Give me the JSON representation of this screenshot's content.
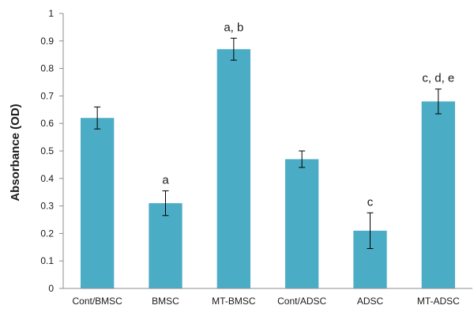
{
  "chart_data": {
    "type": "bar",
    "ylabel": "Absorbance (OD)",
    "xlabel": "",
    "ylim": [
      0,
      1
    ],
    "yticks": [
      0,
      0.1,
      0.2,
      0.3,
      0.4,
      0.5,
      0.6,
      0.7,
      0.8,
      0.9,
      1
    ],
    "ytick_labels": [
      "0",
      "0.1",
      "0.2",
      "0.3",
      "0.4",
      "0.5",
      "0.6",
      "0.7",
      "0.8",
      "0.9",
      "1"
    ],
    "grid": false,
    "bar_color": "#4bacc6",
    "categories": [
      "Cont/BMSC",
      "BMSC",
      "MT-BMSC",
      "Cont/ADSC",
      "ADSC",
      "MT-ADSC"
    ],
    "values": [
      0.62,
      0.31,
      0.87,
      0.47,
      0.21,
      0.68
    ],
    "error": [
      0.04,
      0.045,
      0.04,
      0.03,
      0.065,
      0.045
    ],
    "annotations": [
      "",
      "a",
      "a, b",
      "",
      "c",
      "c, d, e"
    ]
  }
}
